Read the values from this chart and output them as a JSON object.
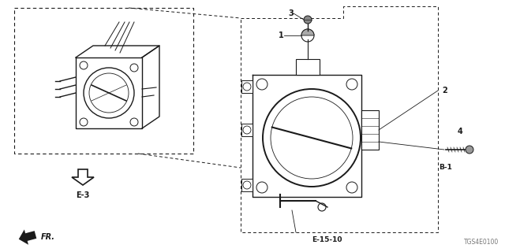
{
  "bg_color": "#ffffff",
  "line_color": "#1a1a1a",
  "part_number_code": "TGS4E0100",
  "labels": {
    "E3": "E-3",
    "B1": "B-1",
    "E1510": "E-15-10",
    "FR": "FR.",
    "part1": "1",
    "part2": "2",
    "part3": "3",
    "part4": "4"
  }
}
